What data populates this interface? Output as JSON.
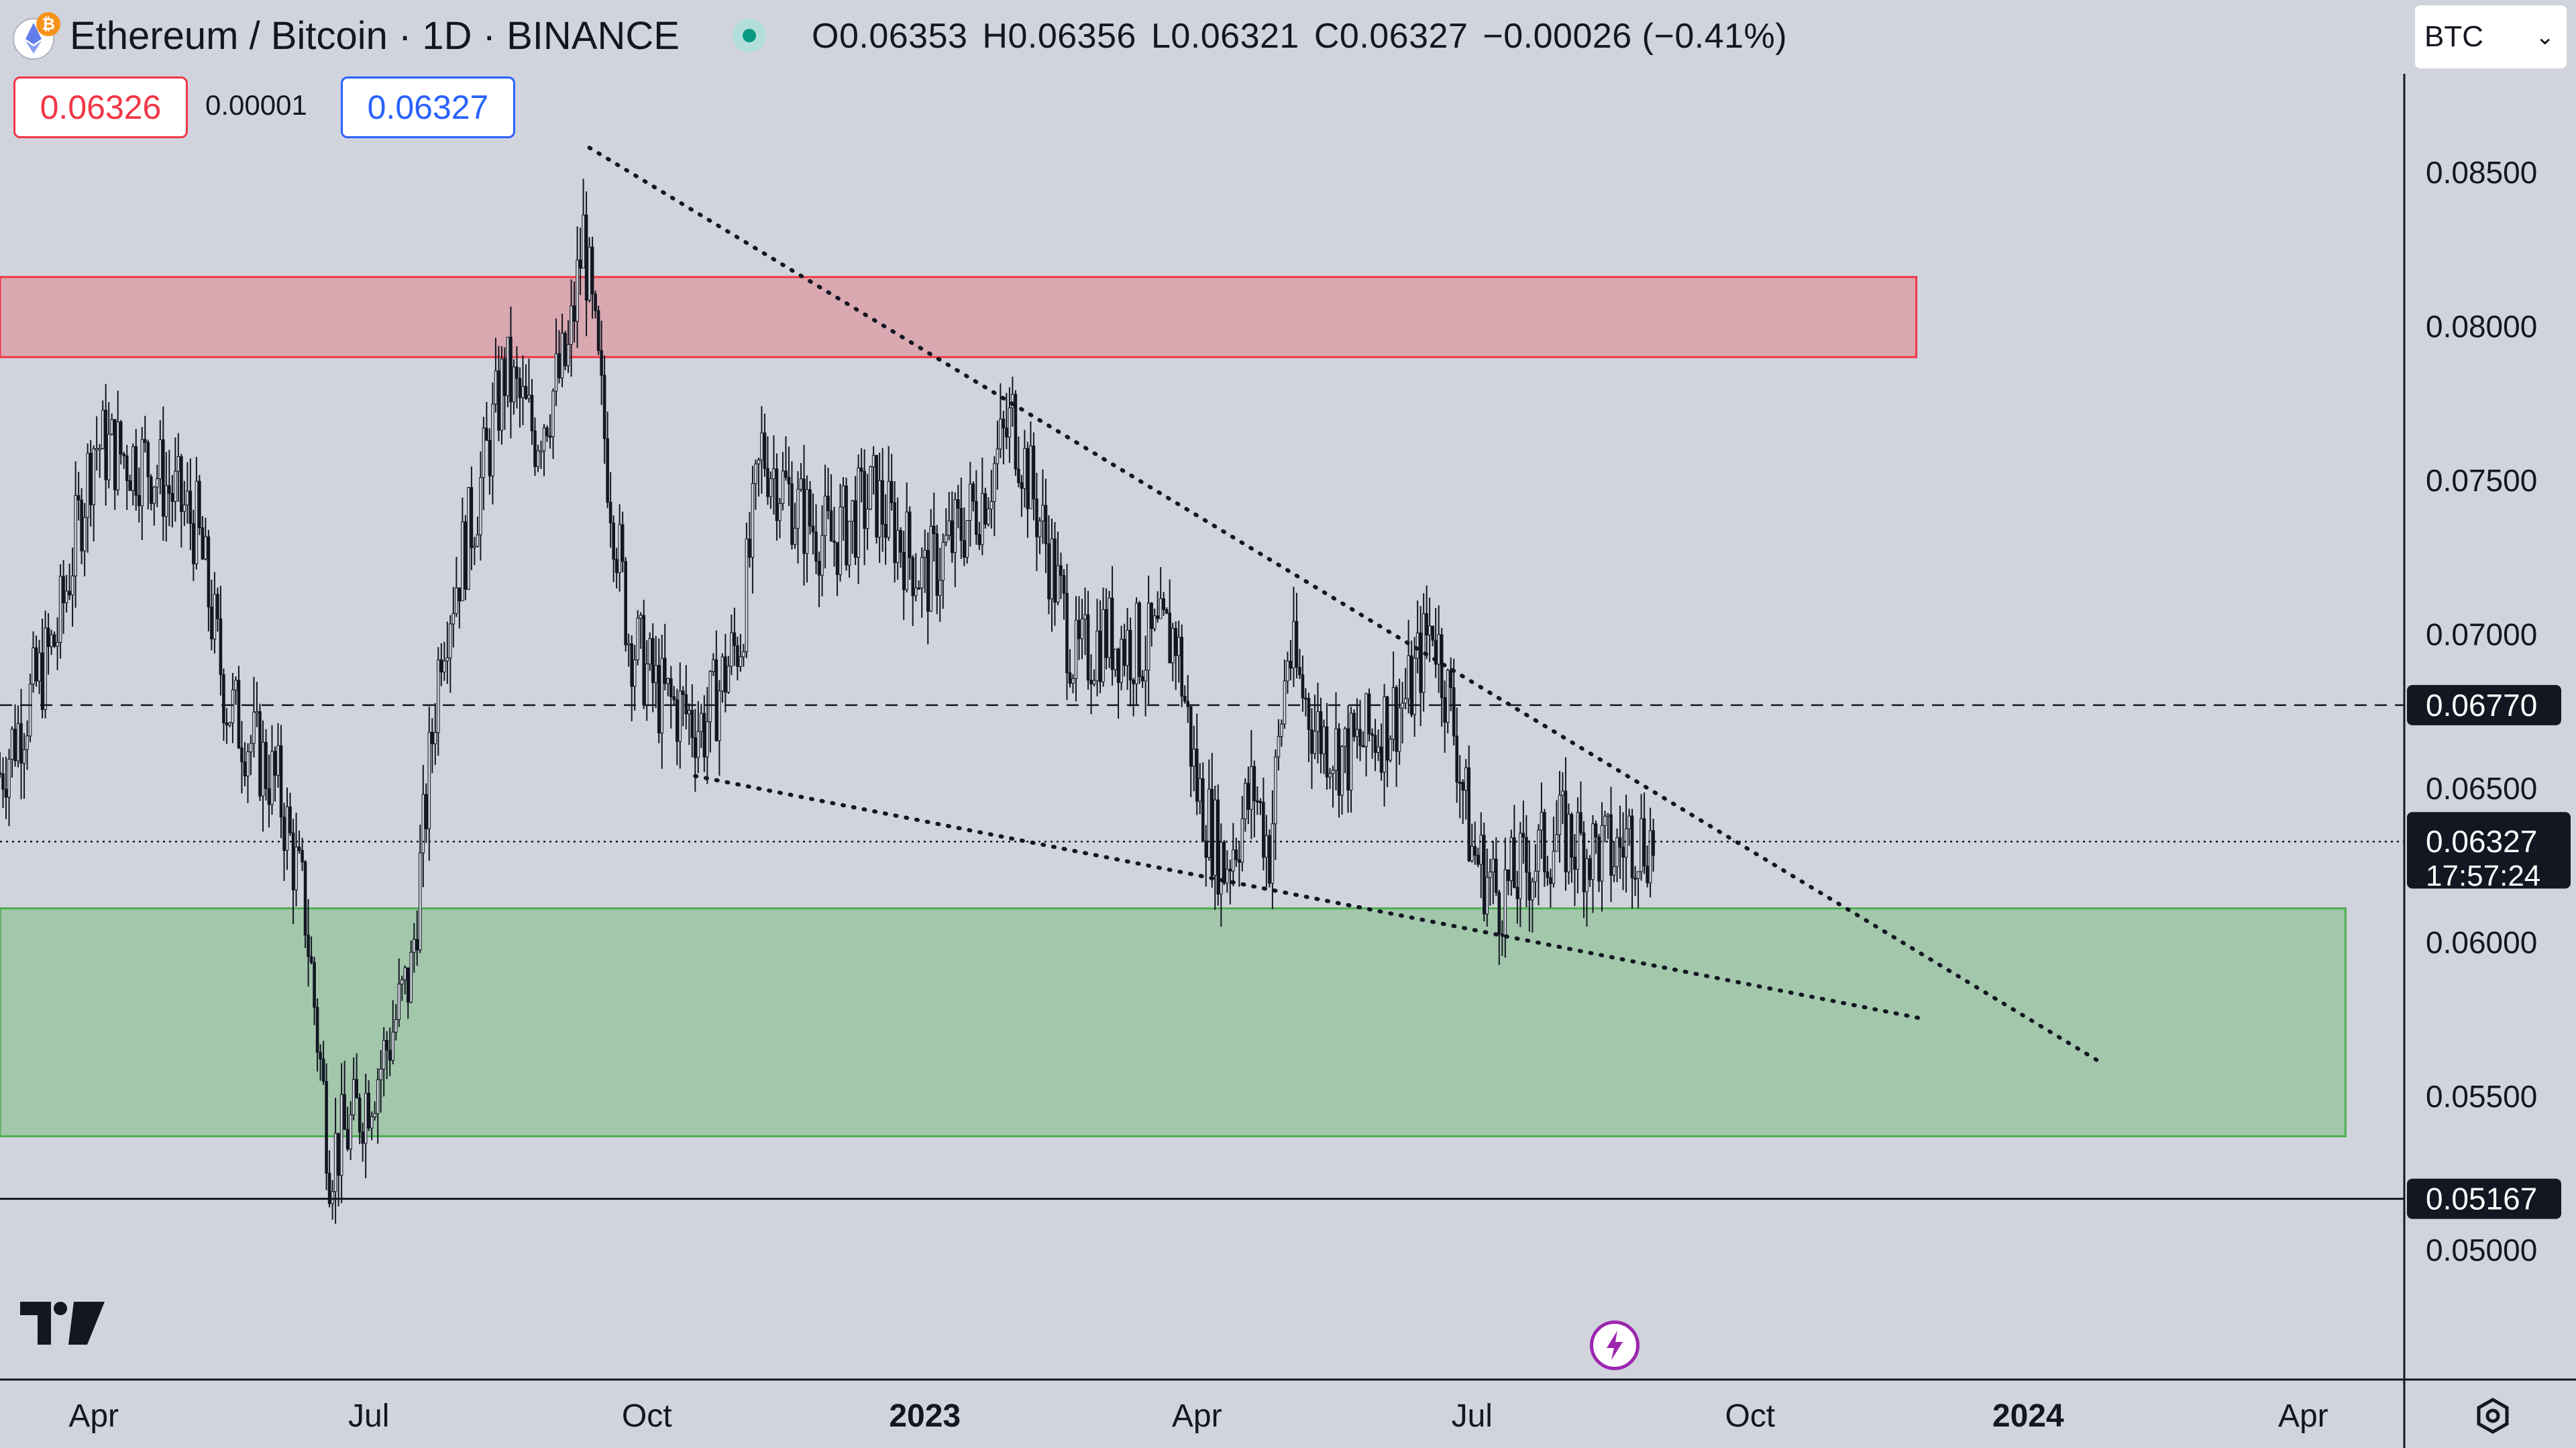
{
  "header": {
    "title": "Ethereum / Bitcoin · 1D · BINANCE",
    "ohlc": {
      "open": "O0.06353",
      "high": "H0.06356",
      "low": "L0.06321",
      "close": "C0.06327",
      "change": "−0.00026 (−0.41%)"
    },
    "sell_price": "0.06326",
    "spread": "0.00001",
    "buy_price": "0.06327",
    "currency": "BTC"
  },
  "icons": {
    "pair": "eth-btc-pair-icon",
    "logo": "tradingview-logo-icon",
    "bolt": "lightning-icon",
    "settings": "gear-icon"
  },
  "colors": {
    "background": "#d1d4dc",
    "supply_zone": "#f23645",
    "demand_zone": "#4caf50",
    "sell": "#f23645",
    "buy": "#2962ff"
  },
  "chart_data": {
    "type": "candlestick",
    "symbol": "ETHBTC",
    "timeframe": "1D",
    "exchange": "BINANCE",
    "ylim": [
      0.0458,
      0.0882
    ],
    "y_ticks": [
      "0.08500",
      "0.08000",
      "0.07500",
      "0.07000",
      "0.06500",
      "0.06000",
      "0.05500",
      "0.05000"
    ],
    "y_tick_values": [
      0.085,
      0.08,
      0.075,
      0.07,
      0.065,
      0.06,
      0.055,
      0.05
    ],
    "x_ticks": [
      {
        "label": "Apr",
        "date": "2022-04-01",
        "bold": false
      },
      {
        "label": "Jul",
        "date": "2022-07-01",
        "bold": false
      },
      {
        "label": "Oct",
        "date": "2022-10-01",
        "bold": false
      },
      {
        "label": "2023",
        "date": "2023-01-01",
        "bold": true
      },
      {
        "label": "Apr",
        "date": "2023-04-01",
        "bold": false
      },
      {
        "label": "Jul",
        "date": "2023-07-01",
        "bold": false
      },
      {
        "label": "Oct",
        "date": "2023-10-01",
        "bold": false
      },
      {
        "label": "2024",
        "date": "2024-01-01",
        "bold": true
      },
      {
        "label": "Apr",
        "date": "2024-04-01",
        "bold": false
      }
    ],
    "x_range": [
      "2022-03-01",
      "2024-05-04"
    ],
    "price_path": [
      [
        "2022-03-01",
        0.0655
      ],
      [
        "2022-03-20",
        0.07
      ],
      [
        "2022-04-01",
        0.0762
      ],
      [
        "2022-04-20",
        0.0755
      ],
      [
        "2022-05-05",
        0.0735
      ],
      [
        "2022-05-15",
        0.0678
      ],
      [
        "2022-06-01",
        0.065
      ],
      [
        "2022-06-10",
        0.061
      ],
      [
        "2022-06-18",
        0.053
      ],
      [
        "2022-06-25",
        0.054
      ],
      [
        "2022-07-05",
        0.056
      ],
      [
        "2022-07-15",
        0.059
      ],
      [
        "2022-07-25",
        0.07
      ],
      [
        "2022-08-05",
        0.074
      ],
      [
        "2022-08-15",
        0.0785
      ],
      [
        "2022-08-25",
        0.0765
      ],
      [
        "2022-09-05",
        0.079
      ],
      [
        "2022-09-10",
        0.083
      ],
      [
        "2022-09-18",
        0.0755
      ],
      [
        "2022-09-25",
        0.07
      ],
      [
        "2022-10-05",
        0.068
      ],
      [
        "2022-10-20",
        0.067
      ],
      [
        "2022-11-01",
        0.07
      ],
      [
        "2022-11-08",
        0.076
      ],
      [
        "2022-11-20",
        0.074
      ],
      [
        "2022-12-01",
        0.073
      ],
      [
        "2022-12-15",
        0.0745
      ],
      [
        "2023-01-01",
        0.0718
      ],
      [
        "2023-01-10",
        0.073
      ],
      [
        "2023-01-20",
        0.0745
      ],
      [
        "2023-01-30",
        0.077
      ],
      [
        "2023-02-10",
        0.073
      ],
      [
        "2023-02-20",
        0.069
      ],
      [
        "2023-03-01",
        0.07
      ],
      [
        "2023-03-15",
        0.0695
      ],
      [
        "2023-03-25",
        0.07
      ],
      [
        "2023-04-01",
        0.065
      ],
      [
        "2023-04-10",
        0.0625
      ],
      [
        "2023-04-20",
        0.065
      ],
      [
        "2023-04-25",
        0.063
      ],
      [
        "2023-05-01",
        0.0695
      ],
      [
        "2023-05-10",
        0.067
      ],
      [
        "2023-05-20",
        0.066
      ],
      [
        "2023-06-01",
        0.067
      ],
      [
        "2023-06-10",
        0.068
      ],
      [
        "2023-06-18",
        0.0705
      ],
      [
        "2023-06-25",
        0.067
      ],
      [
        "2023-07-01",
        0.063
      ],
      [
        "2023-07-10",
        0.0615
      ],
      [
        "2023-07-20",
        0.0625
      ],
      [
        "2023-07-30",
        0.0635
      ],
      [
        "2023-08-10",
        0.063
      ],
      [
        "2023-08-17",
        0.0628
      ],
      [
        "2023-08-22",
        0.0635
      ],
      [
        "2023-08-30",
        0.06327
      ]
    ],
    "last_price": 0.06327,
    "countdown": "17:57:24",
    "supply_zone": {
      "from": "2022-03-01",
      "to": "2023-11-25",
      "y_low": 0.079,
      "y_high": 0.0816
    },
    "demand_zone": {
      "from": "2022-03-01",
      "to": "2024-04-15",
      "y_low": 0.0537,
      "y_high": 0.0611
    },
    "trendlines": [
      {
        "name": "upper-trendline",
        "from": [
          "2022-09-12",
          0.0858
        ],
        "to": [
          "2024-01-25",
          0.0561
        ]
      },
      {
        "name": "lower-trendline",
        "from": [
          "2022-10-17",
          0.0654
        ],
        "to": [
          "2023-11-28",
          0.0575
        ]
      }
    ],
    "horizontal_lines": [
      {
        "name": "resistance-line",
        "value": 0.0677,
        "label": "0.06770",
        "style": "dashed"
      },
      {
        "name": "support-line",
        "value": 0.05167,
        "label": "0.05167",
        "style": "solid"
      },
      {
        "name": "last-price-line",
        "value": 0.06327,
        "label": "0.06327",
        "style": "dotted"
      }
    ]
  }
}
